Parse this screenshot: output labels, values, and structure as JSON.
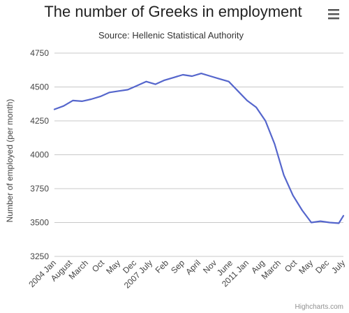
{
  "menu_icon": "hamburger-menu-icon",
  "credits": "Highcharts.com",
  "chart_data": {
    "type": "line",
    "title": "The number of Greeks in employment",
    "subtitle": "Source: Hellenic Statistical Authority",
    "ylabel": "Number of employed (per month)",
    "xlabel": "",
    "ylim": [
      3250,
      4750
    ],
    "yticks": [
      3250,
      3500,
      3750,
      4000,
      4250,
      4500,
      4750
    ],
    "grid": true,
    "legend": "none",
    "line_color": "#5566cc",
    "x_tick_labels": [
      "2004 Jan",
      "August",
      "March",
      "Oct",
      "May",
      "Dec",
      "2007 July",
      "Feb",
      "Sep",
      "April",
      "Nov",
      "June",
      "2011 Jan",
      "Aug",
      "March",
      "Oct",
      "May",
      "Dec",
      "July"
    ],
    "series": [
      {
        "x": [
          "2004-01",
          "2004-05",
          "2004-09",
          "2005-01",
          "2005-05",
          "2005-09",
          "2006-01",
          "2006-05",
          "2006-09",
          "2007-01",
          "2007-05",
          "2007-09",
          "2008-01",
          "2008-05",
          "2008-09",
          "2009-01",
          "2009-05",
          "2009-09",
          "2010-01",
          "2010-05",
          "2010-09",
          "2011-01",
          "2011-05",
          "2011-09",
          "2012-01",
          "2012-05",
          "2012-09",
          "2013-01",
          "2013-05",
          "2013-09",
          "2014-01",
          "2014-05",
          "2014-07"
        ],
        "values": [
          4335,
          4360,
          4400,
          4395,
          4410,
          4430,
          4460,
          4470,
          4480,
          4510,
          4540,
          4520,
          4550,
          4570,
          4590,
          4580,
          4600,
          4580,
          4560,
          4540,
          4470,
          4400,
          4350,
          4250,
          4080,
          3850,
          3700,
          3590,
          3500,
          3510,
          3500,
          3495,
          3550
        ]
      }
    ]
  }
}
